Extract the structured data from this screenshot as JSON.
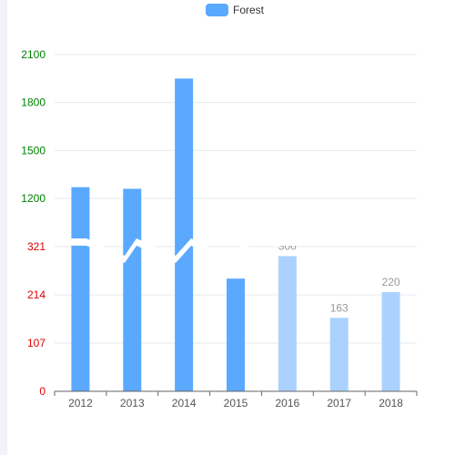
{
  "chart_data": {
    "type": "bar",
    "legend": {
      "entries": [
        "Forest"
      ],
      "placement": "top-center"
    },
    "categories": [
      "2012",
      "2013",
      "2014",
      "2015",
      "2016",
      "2017",
      "2018"
    ],
    "axis_break": true,
    "y_axis_lower": {
      "ticks": [
        0,
        107,
        214,
        321
      ],
      "tick_color": "#dd0000",
      "range": [
        0,
        321
      ]
    },
    "y_axis_upper": {
      "ticks": [
        1200,
        1500,
        1800,
        2100
      ],
      "tick_color": "#008000",
      "range": [
        900,
        2100
      ]
    },
    "series": [
      {
        "name": "Forest",
        "values": [
          1270,
          1260,
          1950,
          250,
          300,
          163,
          220
        ],
        "colors": [
          "#5aa9ff",
          "#5aa9ff",
          "#5aa9ff",
          "#5aa9ff",
          "#abd2ff",
          "#abd2ff",
          "#abd2ff"
        ],
        "data_labels": [
          "",
          "",
          "",
          "",
          "300",
          "163",
          "220"
        ]
      }
    ],
    "grid": true
  }
}
